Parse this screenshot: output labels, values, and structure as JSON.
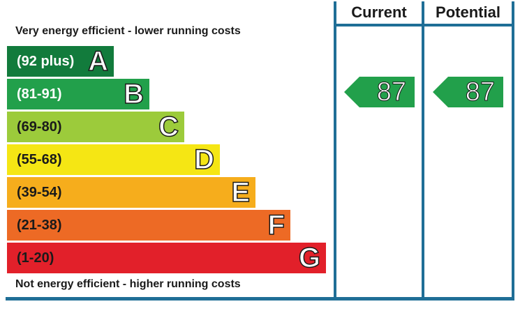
{
  "captions": {
    "top": "Very energy efficient - lower running costs",
    "bottom": "Not energy efficient - higher running costs"
  },
  "bands": [
    {
      "range": "(92 plus)",
      "letter": "A",
      "color": "#127b3c"
    },
    {
      "range": "(81-91)",
      "letter": "B",
      "color": "#22a04b"
    },
    {
      "range": "(69-80)",
      "letter": "C",
      "color": "#9ccb3b"
    },
    {
      "range": "(55-68)",
      "letter": "D",
      "color": "#f5e614"
    },
    {
      "range": "(39-54)",
      "letter": "E",
      "color": "#f6ad1c"
    },
    {
      "range": "(21-38)",
      "letter": "F",
      "color": "#ed6a25"
    },
    {
      "range": "(1-20)",
      "letter": "G",
      "color": "#e2202a"
    }
  ],
  "columns": {
    "current": "Current",
    "potential": "Potential"
  },
  "ratings": {
    "current": "87",
    "potential": "87",
    "band_color": "#22a04b"
  },
  "frame_color": "#1f6e96"
}
